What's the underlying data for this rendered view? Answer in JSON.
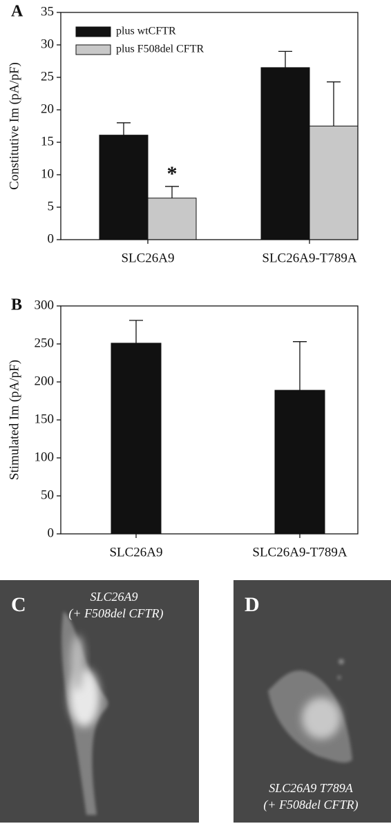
{
  "chart_data": [
    {
      "type": "bar",
      "panel_label": "A",
      "y_label": "Constitutive Im (pA/pF)",
      "categories": [
        "SLC26A9",
        "SLC26A9-T789A"
      ],
      "series": [
        {
          "name": "plus wtCFTR",
          "color": "#111111",
          "values": [
            16.1,
            26.5
          ],
          "errors": [
            1.9,
            2.5
          ]
        },
        {
          "name": "plus F508del CFTR",
          "color": "#c8c8c8",
          "values": [
            6.4,
            17.5
          ],
          "errors": [
            1.8,
            6.8
          ]
        }
      ],
      "annotation": "*",
      "ylim": [
        0,
        35
      ],
      "yticks": [
        0,
        5,
        10,
        15,
        20,
        25,
        30,
        35
      ],
      "legend": "top-left"
    },
    {
      "type": "bar",
      "panel_label": "B",
      "y_label": "Stimulated Im (pA/pF)",
      "categories": [
        "SLC26A9",
        "SLC26A9-T789A"
      ],
      "series": [
        {
          "color": "#111111",
          "values": [
            251,
            189
          ],
          "errors": [
            30,
            64
          ]
        }
      ],
      "ylim": [
        0,
        300
      ],
      "yticks": [
        0,
        50,
        100,
        150,
        200,
        250,
        300
      ]
    }
  ],
  "micrographs": [
    {
      "label": "C",
      "caption_lines": [
        "SLC26A9",
        "(+ F508del CFTR)"
      ]
    },
    {
      "label": "D",
      "caption_lines": [
        "SLC26A9 T789A",
        "(+ F508del CFTR)"
      ]
    }
  ]
}
